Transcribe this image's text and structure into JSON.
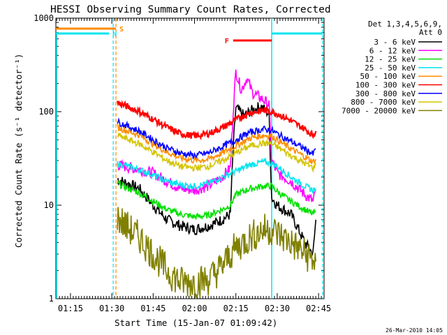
{
  "chart_data": {
    "type": "line",
    "title": "HESSI Observing Summary Count Rates, Corrected",
    "xlabel": "Start Time (15-Jan-07 01:09:42)",
    "ylabel": "Corrected Count Rate (s⁻¹ detector⁻¹)",
    "yscale": "log",
    "ylim": [
      1,
      1000
    ],
    "xlim": [
      "01:09:42",
      "02:47:00"
    ],
    "x_ticks": [
      "01:15",
      "01:30",
      "01:45",
      "02:00",
      "02:15",
      "02:30",
      "02:45"
    ],
    "y_ticks": [
      "1",
      "10",
      "100",
      "1000"
    ],
    "legend": {
      "position": "right",
      "header": [
        "Det 1,3,4,5,6,9,",
        "Att 0"
      ]
    },
    "series": [
      {
        "name": "3 - 6 keV",
        "color": "#000000",
        "points": [
          [
            "01:32",
            19
          ],
          [
            "01:40",
            15
          ],
          [
            "01:45",
            10
          ],
          [
            "01:50",
            7
          ],
          [
            "01:55",
            6
          ],
          [
            "02:00",
            5.5
          ],
          [
            "02:05",
            6
          ],
          [
            "02:10",
            7
          ],
          [
            "02:13",
            8
          ],
          [
            "02:14",
            40
          ],
          [
            "02:15",
            110
          ],
          [
            "02:18",
            90
          ],
          [
            "02:20",
            100
          ],
          [
            "02:24",
            115
          ],
          [
            "02:27",
            95
          ],
          [
            "02:28",
            12
          ],
          [
            "02:30",
            10
          ],
          [
            "02:35",
            8
          ],
          [
            "02:40",
            4
          ],
          [
            "02:43",
            3
          ],
          [
            "02:44",
            7
          ]
        ]
      },
      {
        "name": "6 - 12 keV",
        "color": "#ff00ff",
        "points": [
          [
            "01:32",
            27
          ],
          [
            "01:40",
            24
          ],
          [
            "01:45",
            22
          ],
          [
            "01:50",
            18
          ],
          [
            "01:55",
            15
          ],
          [
            "02:00",
            14.5
          ],
          [
            "02:05",
            16
          ],
          [
            "02:10",
            20
          ],
          [
            "02:13",
            25
          ],
          [
            "02:14",
            100
          ],
          [
            "02:15",
            270
          ],
          [
            "02:17",
            170
          ],
          [
            "02:19",
            230
          ],
          [
            "02:21",
            160
          ],
          [
            "02:24",
            140
          ],
          [
            "02:27",
            120
          ],
          [
            "02:28",
            30
          ],
          [
            "02:30",
            22
          ],
          [
            "02:35",
            18
          ],
          [
            "02:40",
            13
          ],
          [
            "02:43",
            11
          ],
          [
            "02:44",
            14
          ]
        ]
      },
      {
        "name": "12 - 25 keV",
        "color": "#00e000",
        "points": [
          [
            "01:32",
            17
          ],
          [
            "01:40",
            13.5
          ],
          [
            "01:45",
            11
          ],
          [
            "01:50",
            9
          ],
          [
            "01:55",
            8
          ],
          [
            "02:00",
            7.5
          ],
          [
            "02:05",
            7.8
          ],
          [
            "02:10",
            9
          ],
          [
            "02:13",
            10
          ],
          [
            "02:15",
            13
          ],
          [
            "02:20",
            15
          ],
          [
            "02:25",
            16
          ],
          [
            "02:28",
            16
          ],
          [
            "02:30",
            14
          ],
          [
            "02:35",
            11
          ],
          [
            "02:40",
            9
          ],
          [
            "02:43",
            8
          ],
          [
            "02:44",
            8.5
          ]
        ]
      },
      {
        "name": "25 - 50 keV",
        "color": "#00e5ee",
        "points": [
          [
            "01:32",
            28
          ],
          [
            "01:40",
            24
          ],
          [
            "01:45",
            21
          ],
          [
            "01:50",
            18
          ],
          [
            "01:55",
            16.5
          ],
          [
            "02:00",
            16
          ],
          [
            "02:05",
            17
          ],
          [
            "02:10",
            20
          ],
          [
            "02:15",
            23
          ],
          [
            "02:20",
            27
          ],
          [
            "02:25",
            29
          ],
          [
            "02:28",
            28
          ],
          [
            "02:30",
            26
          ],
          [
            "02:35",
            20
          ],
          [
            "02:40",
            16
          ],
          [
            "02:43",
            14.5
          ],
          [
            "02:44",
            15
          ]
        ]
      },
      {
        "name": "50 - 100 keV",
        "color": "#ff8c00",
        "points": [
          [
            "01:32",
            68
          ],
          [
            "01:40",
            56
          ],
          [
            "01:45",
            45
          ],
          [
            "01:50",
            37
          ],
          [
            "01:55",
            32
          ],
          [
            "02:00",
            30
          ],
          [
            "02:05",
            31
          ],
          [
            "02:10",
            36
          ],
          [
            "02:15",
            43
          ],
          [
            "02:20",
            52
          ],
          [
            "02:25",
            56
          ],
          [
            "02:28",
            55
          ],
          [
            "02:30",
            50
          ],
          [
            "02:35",
            40
          ],
          [
            "02:40",
            33
          ],
          [
            "02:43",
            29
          ],
          [
            "02:44",
            31
          ]
        ]
      },
      {
        "name": "100 - 300 keV",
        "color": "#ff0000",
        "points": [
          [
            "01:32",
            125
          ],
          [
            "01:40",
            100
          ],
          [
            "01:45",
            83
          ],
          [
            "01:50",
            68
          ],
          [
            "01:55",
            58
          ],
          [
            "02:00",
            55
          ],
          [
            "02:05",
            58
          ],
          [
            "02:10",
            67
          ],
          [
            "02:15",
            82
          ],
          [
            "02:20",
            97
          ],
          [
            "02:25",
            103
          ],
          [
            "02:28",
            100
          ],
          [
            "02:30",
            95
          ],
          [
            "02:35",
            80
          ],
          [
            "02:40",
            65
          ],
          [
            "02:43",
            56
          ],
          [
            "02:44",
            62
          ]
        ]
      },
      {
        "name": "300 - 800 keV",
        "color": "#0000ff",
        "points": [
          [
            "01:32",
            78
          ],
          [
            "01:40",
            62
          ],
          [
            "01:45",
            50
          ],
          [
            "01:50",
            41
          ],
          [
            "01:55",
            36
          ],
          [
            "02:00",
            34
          ],
          [
            "02:05",
            36
          ],
          [
            "02:10",
            42
          ],
          [
            "02:15",
            50
          ],
          [
            "02:20",
            60
          ],
          [
            "02:25",
            65
          ],
          [
            "02:28",
            63
          ],
          [
            "02:30",
            58
          ],
          [
            "02:35",
            48
          ],
          [
            "02:40",
            40
          ],
          [
            "02:43",
            35
          ],
          [
            "02:44",
            40
          ]
        ]
      },
      {
        "name": "800 - 7000 keV",
        "color": "#d4c400",
        "points": [
          [
            "01:32",
            56
          ],
          [
            "01:40",
            45
          ],
          [
            "01:45",
            37
          ],
          [
            "01:50",
            30
          ],
          [
            "01:55",
            26
          ],
          [
            "02:00",
            25
          ],
          [
            "02:05",
            26
          ],
          [
            "02:10",
            30
          ],
          [
            "02:15",
            36
          ],
          [
            "02:20",
            43
          ],
          [
            "02:25",
            46
          ],
          [
            "02:28",
            45
          ],
          [
            "02:30",
            42
          ],
          [
            "02:35",
            34
          ],
          [
            "02:40",
            28
          ],
          [
            "02:43",
            25
          ],
          [
            "02:44",
            27
          ]
        ]
      },
      {
        "name": "7000 - 20000 keV",
        "color": "#808000",
        "points": [
          [
            "01:32",
            7.5
          ],
          [
            "01:35",
            6
          ],
          [
            "01:40",
            4.5
          ],
          [
            "01:45",
            3
          ],
          [
            "01:50",
            2
          ],
          [
            "01:55",
            1.5
          ],
          [
            "02:00",
            1.5
          ],
          [
            "02:05",
            1.6
          ],
          [
            "02:10",
            2.2
          ],
          [
            "02:13",
            3
          ],
          [
            "02:15",
            3.5
          ],
          [
            "02:20",
            4.5
          ],
          [
            "02:25",
            5.5
          ],
          [
            "02:28",
            5.5
          ],
          [
            "02:30",
            5
          ],
          [
            "02:35",
            4
          ],
          [
            "02:40",
            3
          ],
          [
            "02:43",
            2.6
          ],
          [
            "02:44",
            2.5
          ]
        ]
      }
    ],
    "annotations": [
      {
        "label": "S",
        "color": "#ff8c00",
        "start": "01:09:42",
        "end": "01:31:30"
      },
      {
        "label": "N",
        "color": "#00e5ee",
        "start": "01:09:42",
        "end": "01:29:00"
      },
      {
        "label": "F",
        "color": "#ff0000",
        "start": "02:14:00",
        "end": "02:28:00"
      },
      {
        "label": "",
        "color": "#00e5ee",
        "start": "02:28:00",
        "end": "02:46:30"
      }
    ],
    "vertical_markers": [
      {
        "time": "01:30:30",
        "color": "#00e5ee",
        "style": "dashed"
      },
      {
        "time": "01:31:30",
        "color": "#ff8c00",
        "style": "dashed"
      },
      {
        "time": "02:28:00",
        "color": "#00e5ee",
        "style": "solid"
      },
      {
        "time": "02:46:30",
        "color": "#00e5ee",
        "style": "dashed"
      }
    ]
  },
  "footer": {
    "timestamp": "26-Mar-2010 14:05"
  }
}
